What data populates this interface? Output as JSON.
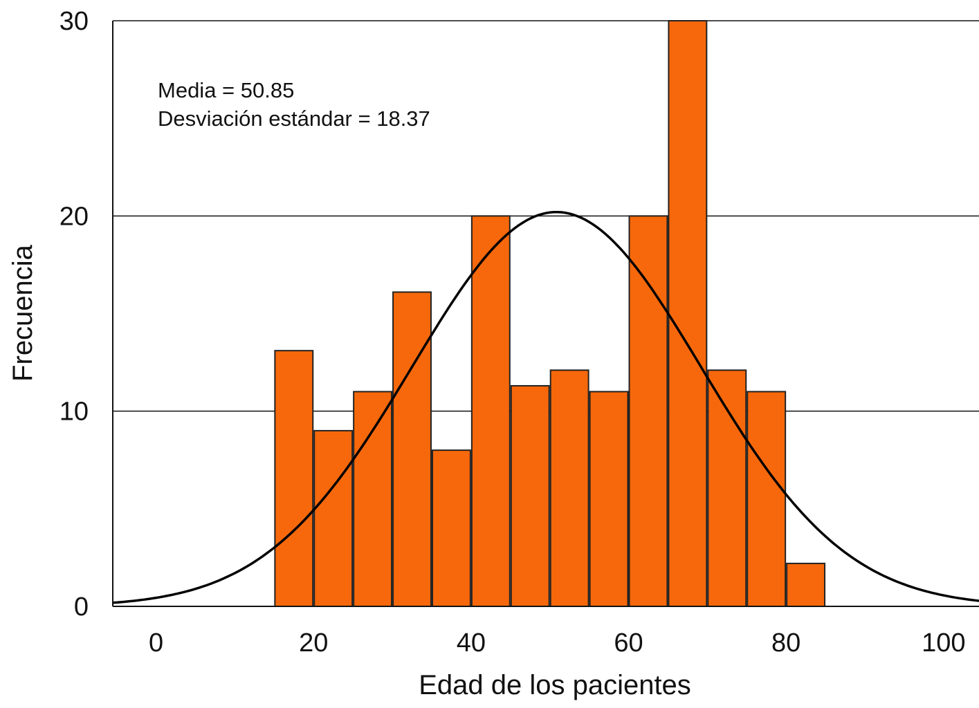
{
  "chart_data": {
    "type": "bar",
    "title": "",
    "xlabel": "Edad de los pacientes",
    "ylabel": "Frecuencia",
    "xlim": [
      -5.5,
      104.5
    ],
    "ylim": [
      0,
      30
    ],
    "x_ticks": [
      0,
      20,
      40,
      60,
      80,
      100
    ],
    "y_ticks": [
      0,
      10,
      20,
      30
    ],
    "grid": true,
    "bins": [
      {
        "start": 15,
        "end": 20,
        "value": 13.1
      },
      {
        "start": 20,
        "end": 25,
        "value": 9.0
      },
      {
        "start": 25,
        "end": 30,
        "value": 11.0
      },
      {
        "start": 30,
        "end": 35,
        "value": 16.1
      },
      {
        "start": 35,
        "end": 40,
        "value": 8.0
      },
      {
        "start": 40,
        "end": 45,
        "value": 20.0
      },
      {
        "start": 45,
        "end": 50,
        "value": 11.3
      },
      {
        "start": 50,
        "end": 55,
        "value": 12.1
      },
      {
        "start": 55,
        "end": 60,
        "value": 11.0
      },
      {
        "start": 60,
        "end": 65,
        "value": 20.0
      },
      {
        "start": 65,
        "end": 70,
        "value": 30.0
      },
      {
        "start": 70,
        "end": 75,
        "value": 12.1
      },
      {
        "start": 75,
        "end": 80,
        "value": 11.0
      },
      {
        "start": 80,
        "end": 85,
        "value": 2.2
      }
    ],
    "normal_curve": {
      "mean": 50.85,
      "sd": 18.37,
      "peak": 20.2
    },
    "annotations": [
      "Media = 50.85",
      "Desviación estándar = 18.37"
    ],
    "colors": {
      "bar": "#f6680b",
      "bar_edge": "#222222",
      "curve": "#000000"
    }
  }
}
